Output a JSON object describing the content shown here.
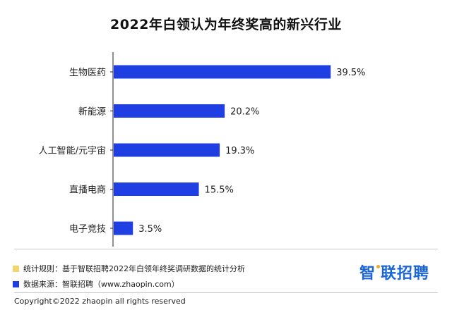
{
  "colors": {
    "bar": "#1f3fe3",
    "axis": "#222222",
    "note_swatch_1": "#f5d46a",
    "note_swatch_2": "#1f3fe3",
    "logo": "#1a66d9",
    "logo_dot": "#f5a623"
  },
  "chart_data": {
    "type": "bar",
    "orientation": "horizontal",
    "title": "2022年白领认为年终奖高的新兴行业",
    "categories": [
      "生物医药",
      "新能源",
      "人工智能/元宇宙",
      "直播电商",
      "电子竞技"
    ],
    "values": [
      39.5,
      20.2,
      19.3,
      15.5,
      3.5
    ],
    "value_labels": [
      "39.5%",
      "20.2%",
      "19.3%",
      "15.5%",
      "3.5%"
    ],
    "xlabel": "",
    "ylabel": "",
    "xlim": [
      0,
      45
    ],
    "grid": false,
    "legend": "none"
  },
  "footer": {
    "note_rule": "统计规则：基于智联招聘2022年白领年终奖调研数据的统计分析",
    "note_source": "数据来源：智联招聘（www.zhaopin.com）",
    "logo_text_1": "智",
    "logo_text_2": "联招聘",
    "copyright": "Copyright©2022 zhaopin all rights reserved"
  }
}
